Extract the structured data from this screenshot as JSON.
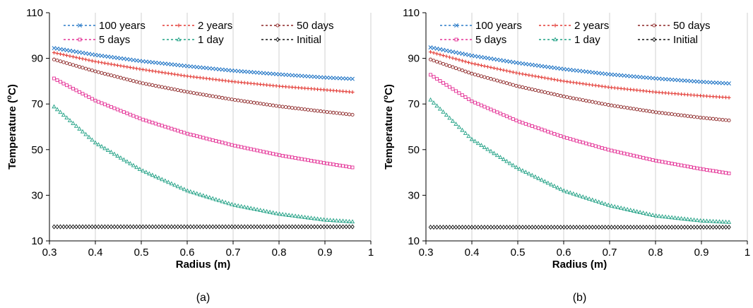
{
  "chart_data": [
    {
      "type": "scatter",
      "caption": "(a)",
      "xlabel": "Radius (m)",
      "ylabel_main": "Temperature (",
      "ylabel_sup": "o",
      "ylabel_end": "C)",
      "xlim": [
        0.3,
        1.0
      ],
      "ylim": [
        10,
        110
      ],
      "xticks": [
        0.3,
        0.4,
        0.5,
        0.6,
        0.7,
        0.8,
        0.9,
        1.0
      ],
      "xtick_labels": [
        "0.3",
        "0.4",
        "0.5",
        "0.6",
        "0.7",
        "0.8",
        "0.9",
        "1"
      ],
      "yticks": [
        10,
        30,
        50,
        70,
        90,
        110
      ],
      "ytick_labels": [
        "10",
        "30",
        "50",
        "70",
        "90",
        "110"
      ],
      "grid": "vertical",
      "series": [
        {
          "name": "100 years",
          "marker": "x",
          "color": "#2a7bc8",
          "x": [
            0.31,
            0.4,
            0.5,
            0.6,
            0.7,
            0.8,
            0.9,
            0.96
          ],
          "y": [
            94.5,
            91.5,
            88.8,
            86.6,
            84.6,
            83.0,
            81.6,
            81.0
          ]
        },
        {
          "name": "2 years",
          "marker": "plus",
          "color": "#e33a34",
          "x": [
            0.31,
            0.4,
            0.5,
            0.6,
            0.7,
            0.8,
            0.9,
            0.96
          ],
          "y": [
            92.5,
            88.6,
            85.2,
            82.2,
            79.8,
            77.8,
            76.2,
            75.2
          ]
        },
        {
          "name": "50 days",
          "marker": "circle",
          "color": "#8c2525",
          "x": [
            0.31,
            0.4,
            0.5,
            0.6,
            0.7,
            0.8,
            0.9,
            0.96
          ],
          "y": [
            89.5,
            84.3,
            79.2,
            75.3,
            71.9,
            69.0,
            66.6,
            65.3
          ]
        },
        {
          "name": "5 days",
          "marker": "square",
          "color": "#e43196",
          "x": [
            0.31,
            0.4,
            0.5,
            0.6,
            0.7,
            0.8,
            0.9,
            0.96
          ],
          "y": [
            81.2,
            71.5,
            63.4,
            57.0,
            51.9,
            47.6,
            44.1,
            42.2
          ]
        },
        {
          "name": "1 day",
          "marker": "triangle",
          "color": "#1fa084",
          "x": [
            0.31,
            0.4,
            0.5,
            0.6,
            0.7,
            0.8,
            0.9,
            0.96
          ],
          "y": [
            68.8,
            53.0,
            41.0,
            32.0,
            25.8,
            21.8,
            19.2,
            18.4
          ]
        },
        {
          "name": "Initial",
          "marker": "diamond",
          "color": "#111111",
          "x": [
            0.31,
            0.4,
            0.5,
            0.6,
            0.7,
            0.8,
            0.9,
            0.96
          ],
          "y": [
            16.2,
            16.2,
            16.2,
            16.2,
            16.2,
            16.2,
            16.2,
            16.2
          ]
        }
      ]
    },
    {
      "type": "scatter",
      "caption": "(b)",
      "xlabel": "Radius (m)",
      "ylabel_main": "Temperature (",
      "ylabel_sup": "o",
      "ylabel_end": "C)",
      "xlim": [
        0.3,
        1.0
      ],
      "ylim": [
        10,
        110
      ],
      "xticks": [
        0.3,
        0.4,
        0.5,
        0.6,
        0.7,
        0.8,
        0.9,
        1.0
      ],
      "xtick_labels": [
        "0.3",
        "0.4",
        "0.5",
        "0.6",
        "0.7",
        "0.8",
        "0.9",
        "1"
      ],
      "yticks": [
        10,
        30,
        50,
        70,
        90,
        110
      ],
      "ytick_labels": [
        "10",
        "30",
        "50",
        "70",
        "90",
        "110"
      ],
      "grid": "vertical",
      "series": [
        {
          "name": "100 years",
          "marker": "x",
          "color": "#2a7bc8",
          "x": [
            0.31,
            0.4,
            0.5,
            0.6,
            0.7,
            0.8,
            0.9,
            0.96
          ],
          "y": [
            94.8,
            91.2,
            88.0,
            85.3,
            83.0,
            81.2,
            79.7,
            79.0
          ]
        },
        {
          "name": "2 years",
          "marker": "plus",
          "color": "#e33a34",
          "x": [
            0.31,
            0.4,
            0.5,
            0.6,
            0.7,
            0.8,
            0.9,
            0.96
          ],
          "y": [
            92.8,
            87.8,
            83.5,
            80.0,
            77.3,
            75.2,
            73.6,
            72.8
          ]
        },
        {
          "name": "50 days",
          "marker": "circle",
          "color": "#8c2525",
          "x": [
            0.31,
            0.4,
            0.5,
            0.6,
            0.7,
            0.8,
            0.9,
            0.96
          ],
          "y": [
            89.5,
            83.3,
            77.8,
            73.3,
            69.5,
            66.4,
            64.0,
            62.8
          ]
        },
        {
          "name": "5 days",
          "marker": "square",
          "color": "#e43196",
          "x": [
            0.31,
            0.4,
            0.5,
            0.6,
            0.7,
            0.8,
            0.9,
            0.96
          ],
          "y": [
            82.8,
            71.2,
            62.5,
            55.5,
            49.8,
            45.2,
            41.5,
            39.6
          ]
        },
        {
          "name": "1 day",
          "marker": "triangle",
          "color": "#1fa084",
          "x": [
            0.31,
            0.4,
            0.5,
            0.6,
            0.7,
            0.8,
            0.9,
            0.96
          ],
          "y": [
            71.8,
            54.5,
            41.8,
            32.0,
            25.5,
            21.0,
            18.8,
            18.2
          ]
        },
        {
          "name": "Initial",
          "marker": "diamond",
          "color": "#111111",
          "x": [
            0.31,
            0.4,
            0.5,
            0.6,
            0.7,
            0.8,
            0.9,
            0.96
          ],
          "y": [
            16.0,
            16.0,
            16.0,
            16.0,
            16.0,
            16.0,
            16.0,
            16.0
          ]
        }
      ]
    }
  ]
}
